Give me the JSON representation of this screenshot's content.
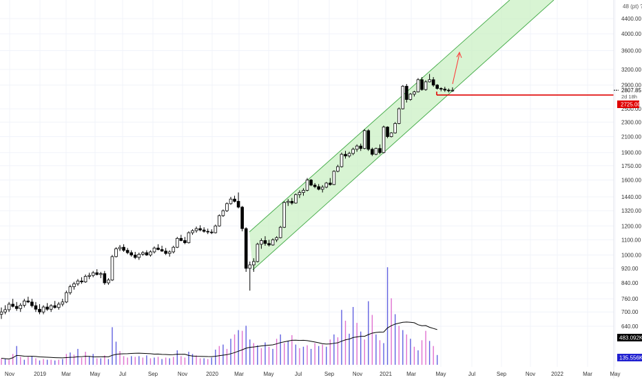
{
  "chart_data": {
    "type": "candlestick",
    "axis_corner_label": "48 (pt) ?",
    "y_ticks": [
      4400,
      4000,
      3600,
      3200,
      2900,
      2500,
      2300,
      2100,
      1900,
      1750,
      1600,
      1440,
      1320,
      1200,
      1100,
      1000,
      920,
      840,
      760,
      700,
      640
    ],
    "y_tick_labels": [
      "4400.00",
      "4000.00",
      "3600.00",
      "3200.00",
      "2900.00",
      "2500.00",
      "2300.00",
      "2100.00",
      "1900.00",
      "1750.00",
      "1600.00",
      "1440.00",
      "1320.00",
      "1200.00",
      "1100.00",
      "1000.00",
      "920.00",
      "840.00",
      "760.00",
      "700.00",
      "640.00"
    ],
    "x_labels": [
      "Nov",
      "2019",
      "Mar",
      "May",
      "Jul",
      "Sep",
      "Nov",
      "2020",
      "Mar",
      "May",
      "Jul",
      "Sep",
      "Nov",
      "2021",
      "Mar",
      "May",
      "Jul",
      "Sep",
      "Nov",
      "2022",
      "Mar",
      "May"
    ],
    "price_label": "2807.85",
    "countdown_label": "2d 18h",
    "level_label": "2725.00",
    "level_value": 2725,
    "vol_ma_label": "483.092K",
    "vol_label": "135.556K",
    "colors": {
      "up": "#000000",
      "down": "#000000",
      "channel_fill": "#c8f0c0",
      "channel_line": "#4caf50",
      "level": "#e00000",
      "arrow": "#ff3030",
      "vol_blue": "#6060e0",
      "vol_pink": "#e070d0",
      "vol_ma": "#000000",
      "label_red": "#e00000",
      "label_black": "#000000",
      "label_blue": "#2020d0"
    },
    "candles": [
      {
        "o": 690,
        "h": 720,
        "l": 670,
        "c": 700
      },
      {
        "o": 700,
        "h": 730,
        "l": 690,
        "c": 710
      },
      {
        "o": 710,
        "h": 745,
        "l": 700,
        "c": 735
      },
      {
        "o": 735,
        "h": 760,
        "l": 720,
        "c": 725
      },
      {
        "o": 725,
        "h": 745,
        "l": 705,
        "c": 715
      },
      {
        "o": 715,
        "h": 740,
        "l": 700,
        "c": 730
      },
      {
        "o": 730,
        "h": 760,
        "l": 720,
        "c": 750
      },
      {
        "o": 750,
        "h": 770,
        "l": 740,
        "c": 745
      },
      {
        "o": 745,
        "h": 760,
        "l": 720,
        "c": 728
      },
      {
        "o": 728,
        "h": 745,
        "l": 700,
        "c": 712
      },
      {
        "o": 712,
        "h": 735,
        "l": 690,
        "c": 700
      },
      {
        "o": 700,
        "h": 730,
        "l": 690,
        "c": 722
      },
      {
        "o": 722,
        "h": 740,
        "l": 705,
        "c": 712
      },
      {
        "o": 712,
        "h": 735,
        "l": 700,
        "c": 728
      },
      {
        "o": 728,
        "h": 750,
        "l": 715,
        "c": 720
      },
      {
        "o": 720,
        "h": 745,
        "l": 710,
        "c": 735
      },
      {
        "o": 735,
        "h": 760,
        "l": 725,
        "c": 745
      },
      {
        "o": 745,
        "h": 800,
        "l": 740,
        "c": 790
      },
      {
        "o": 790,
        "h": 830,
        "l": 780,
        "c": 820
      },
      {
        "o": 820,
        "h": 845,
        "l": 805,
        "c": 835
      },
      {
        "o": 835,
        "h": 860,
        "l": 825,
        "c": 850
      },
      {
        "o": 850,
        "h": 870,
        "l": 835,
        "c": 845
      },
      {
        "o": 845,
        "h": 885,
        "l": 840,
        "c": 875
      },
      {
        "o": 875,
        "h": 895,
        "l": 860,
        "c": 880
      },
      {
        "o": 880,
        "h": 905,
        "l": 870,
        "c": 895
      },
      {
        "o": 895,
        "h": 915,
        "l": 880,
        "c": 885
      },
      {
        "o": 885,
        "h": 900,
        "l": 865,
        "c": 890
      },
      {
        "o": 890,
        "h": 905,
        "l": 830,
        "c": 840
      },
      {
        "o": 840,
        "h": 865,
        "l": 830,
        "c": 855
      },
      {
        "o": 855,
        "h": 1000,
        "l": 850,
        "c": 990
      },
      {
        "o": 990,
        "h": 1050,
        "l": 985,
        "c": 1040
      },
      {
        "o": 1040,
        "h": 1065,
        "l": 1025,
        "c": 1050
      },
      {
        "o": 1050,
        "h": 1070,
        "l": 1020,
        "c": 1030
      },
      {
        "o": 1030,
        "h": 1045,
        "l": 1005,
        "c": 1015
      },
      {
        "o": 1015,
        "h": 1030,
        "l": 990,
        "c": 1000
      },
      {
        "o": 1000,
        "h": 1020,
        "l": 975,
        "c": 985
      },
      {
        "o": 985,
        "h": 1015,
        "l": 970,
        "c": 1005
      },
      {
        "o": 1005,
        "h": 1025,
        "l": 995,
        "c": 1015
      },
      {
        "o": 1015,
        "h": 1030,
        "l": 995,
        "c": 1000
      },
      {
        "o": 1000,
        "h": 1030,
        "l": 990,
        "c": 1020
      },
      {
        "o": 1020,
        "h": 1055,
        "l": 1010,
        "c": 1045
      },
      {
        "o": 1045,
        "h": 1070,
        "l": 1030,
        "c": 1035
      },
      {
        "o": 1035,
        "h": 1060,
        "l": 1020,
        "c": 1025
      },
      {
        "o": 1025,
        "h": 1045,
        "l": 1000,
        "c": 1010
      },
      {
        "o": 1010,
        "h": 1030,
        "l": 990,
        "c": 1020
      },
      {
        "o": 1020,
        "h": 1060,
        "l": 1010,
        "c": 1050
      },
      {
        "o": 1050,
        "h": 1120,
        "l": 1045,
        "c": 1110
      },
      {
        "o": 1110,
        "h": 1135,
        "l": 1090,
        "c": 1095
      },
      {
        "o": 1095,
        "h": 1120,
        "l": 1070,
        "c": 1080
      },
      {
        "o": 1080,
        "h": 1160,
        "l": 1075,
        "c": 1150
      },
      {
        "o": 1150,
        "h": 1175,
        "l": 1135,
        "c": 1165
      },
      {
        "o": 1165,
        "h": 1195,
        "l": 1150,
        "c": 1180
      },
      {
        "o": 1180,
        "h": 1205,
        "l": 1160,
        "c": 1170
      },
      {
        "o": 1170,
        "h": 1190,
        "l": 1150,
        "c": 1160
      },
      {
        "o": 1160,
        "h": 1180,
        "l": 1140,
        "c": 1155
      },
      {
        "o": 1155,
        "h": 1175,
        "l": 1140,
        "c": 1150
      },
      {
        "o": 1150,
        "h": 1210,
        "l": 1145,
        "c": 1200
      },
      {
        "o": 1200,
        "h": 1290,
        "l": 1195,
        "c": 1280
      },
      {
        "o": 1280,
        "h": 1330,
        "l": 1270,
        "c": 1320
      },
      {
        "o": 1320,
        "h": 1390,
        "l": 1310,
        "c": 1380
      },
      {
        "o": 1380,
        "h": 1440,
        "l": 1370,
        "c": 1420
      },
      {
        "o": 1420,
        "h": 1450,
        "l": 1390,
        "c": 1400
      },
      {
        "o": 1400,
        "h": 1480,
        "l": 1340,
        "c": 1350
      },
      {
        "o": 1350,
        "h": 1360,
        "l": 1160,
        "c": 1180
      },
      {
        "o": 1180,
        "h": 1190,
        "l": 900,
        "c": 920
      },
      {
        "o": 920,
        "h": 960,
        "l": 800,
        "c": 940
      },
      {
        "o": 940,
        "h": 980,
        "l": 900,
        "c": 960
      },
      {
        "o": 960,
        "h": 1080,
        "l": 955,
        "c": 1070
      },
      {
        "o": 1070,
        "h": 1110,
        "l": 1040,
        "c": 1095
      },
      {
        "o": 1095,
        "h": 1125,
        "l": 1060,
        "c": 1075
      },
      {
        "o": 1075,
        "h": 1100,
        "l": 1055,
        "c": 1065
      },
      {
        "o": 1065,
        "h": 1110,
        "l": 1060,
        "c": 1100
      },
      {
        "o": 1100,
        "h": 1125,
        "l": 1085,
        "c": 1115
      },
      {
        "o": 1115,
        "h": 1200,
        "l": 1110,
        "c": 1190
      },
      {
        "o": 1190,
        "h": 1400,
        "l": 1185,
        "c": 1390
      },
      {
        "o": 1390,
        "h": 1420,
        "l": 1360,
        "c": 1400
      },
      {
        "o": 1400,
        "h": 1430,
        "l": 1370,
        "c": 1385
      },
      {
        "o": 1385,
        "h": 1470,
        "l": 1380,
        "c": 1460
      },
      {
        "o": 1460,
        "h": 1500,
        "l": 1430,
        "c": 1480
      },
      {
        "o": 1480,
        "h": 1520,
        "l": 1450,
        "c": 1500
      },
      {
        "o": 1500,
        "h": 1620,
        "l": 1490,
        "c": 1600
      },
      {
        "o": 1600,
        "h": 1610,
        "l": 1540,
        "c": 1550
      },
      {
        "o": 1550,
        "h": 1570,
        "l": 1520,
        "c": 1535
      },
      {
        "o": 1535,
        "h": 1560,
        "l": 1500,
        "c": 1510
      },
      {
        "o": 1510,
        "h": 1550,
        "l": 1480,
        "c": 1530
      },
      {
        "o": 1530,
        "h": 1580,
        "l": 1520,
        "c": 1570
      },
      {
        "o": 1570,
        "h": 1620,
        "l": 1545,
        "c": 1555
      },
      {
        "o": 1555,
        "h": 1700,
        "l": 1550,
        "c": 1690
      },
      {
        "o": 1690,
        "h": 1760,
        "l": 1680,
        "c": 1740
      },
      {
        "o": 1740,
        "h": 1900,
        "l": 1730,
        "c": 1880
      },
      {
        "o": 1880,
        "h": 1920,
        "l": 1830,
        "c": 1860
      },
      {
        "o": 1860,
        "h": 1910,
        "l": 1840,
        "c": 1890
      },
      {
        "o": 1890,
        "h": 1960,
        "l": 1870,
        "c": 1940
      },
      {
        "o": 1940,
        "h": 2000,
        "l": 1910,
        "c": 1980
      },
      {
        "o": 1980,
        "h": 2010,
        "l": 1920,
        "c": 1950
      },
      {
        "o": 1950,
        "h": 2200,
        "l": 1940,
        "c": 2180
      },
      {
        "o": 2180,
        "h": 2200,
        "l": 1920,
        "c": 1940
      },
      {
        "o": 1940,
        "h": 1960,
        "l": 1860,
        "c": 1880
      },
      {
        "o": 1880,
        "h": 1960,
        "l": 1870,
        "c": 1950
      },
      {
        "o": 1950,
        "h": 2000,
        "l": 1880,
        "c": 1900
      },
      {
        "o": 1900,
        "h": 2250,
        "l": 1890,
        "c": 2230
      },
      {
        "o": 2230,
        "h": 2240,
        "l": 2080,
        "c": 2100
      },
      {
        "o": 2100,
        "h": 2160,
        "l": 2090,
        "c": 2150
      },
      {
        "o": 2150,
        "h": 2300,
        "l": 2140,
        "c": 2280
      },
      {
        "o": 2280,
        "h": 2520,
        "l": 2270,
        "c": 2500
      },
      {
        "o": 2500,
        "h": 2900,
        "l": 2490,
        "c": 2880
      },
      {
        "o": 2880,
        "h": 2920,
        "l": 2600,
        "c": 2650
      },
      {
        "o": 2650,
        "h": 2760,
        "l": 2630,
        "c": 2740
      },
      {
        "o": 2740,
        "h": 2800,
        "l": 2700,
        "c": 2780
      },
      {
        "o": 2780,
        "h": 3030,
        "l": 2770,
        "c": 3000
      },
      {
        "o": 3000,
        "h": 3050,
        "l": 2800,
        "c": 2820
      },
      {
        "o": 2820,
        "h": 2990,
        "l": 2800,
        "c": 2960
      },
      {
        "o": 2960,
        "h": 3110,
        "l": 2950,
        "c": 3000
      },
      {
        "o": 3000,
        "h": 3050,
        "l": 2870,
        "c": 2900
      },
      {
        "o": 2900,
        "h": 2920,
        "l": 2820,
        "c": 2840
      },
      {
        "o": 2840,
        "h": 2860,
        "l": 2790,
        "c": 2830
      },
      {
        "o": 2830,
        "h": 2870,
        "l": 2780,
        "c": 2810
      },
      {
        "o": 2810,
        "h": 2840,
        "l": 2770,
        "c": 2800
      },
      {
        "o": 2800,
        "h": 2860,
        "l": 2780,
        "c": 2807.85
      }
    ],
    "volumes": [
      {
        "v": 90,
        "c": "pink"
      },
      {
        "v": 80,
        "c": "blue"
      },
      {
        "v": 70,
        "c": "pink"
      },
      {
        "v": 150,
        "c": "pink"
      },
      {
        "v": 260,
        "c": "blue"
      },
      {
        "v": 110,
        "c": "pink"
      },
      {
        "v": 70,
        "c": "blue"
      },
      {
        "v": 110,
        "c": "pink"
      },
      {
        "v": 120,
        "c": "blue"
      },
      {
        "v": 90,
        "c": "pink"
      },
      {
        "v": 60,
        "c": "blue"
      },
      {
        "v": 80,
        "c": "pink"
      },
      {
        "v": 70,
        "c": "blue"
      },
      {
        "v": 70,
        "c": "pink"
      },
      {
        "v": 60,
        "c": "blue"
      },
      {
        "v": 70,
        "c": "pink"
      },
      {
        "v": 80,
        "c": "blue"
      },
      {
        "v": 150,
        "c": "pink"
      },
      {
        "v": 170,
        "c": "blue"
      },
      {
        "v": 140,
        "c": "pink"
      },
      {
        "v": 220,
        "c": "blue"
      },
      {
        "v": 100,
        "c": "pink"
      },
      {
        "v": 180,
        "c": "pink"
      },
      {
        "v": 120,
        "c": "blue"
      },
      {
        "v": 150,
        "c": "blue"
      },
      {
        "v": 90,
        "c": "pink"
      },
      {
        "v": 90,
        "c": "blue"
      },
      {
        "v": 130,
        "c": "pink"
      },
      {
        "v": 80,
        "c": "blue"
      },
      {
        "v": 520,
        "c": "blue"
      },
      {
        "v": 320,
        "c": "blue"
      },
      {
        "v": 190,
        "c": "pink"
      },
      {
        "v": 120,
        "c": "pink"
      },
      {
        "v": 100,
        "c": "pink"
      },
      {
        "v": 120,
        "c": "blue"
      },
      {
        "v": 110,
        "c": "pink"
      },
      {
        "v": 120,
        "c": "blue"
      },
      {
        "v": 100,
        "c": "pink"
      },
      {
        "v": 130,
        "c": "blue"
      },
      {
        "v": 90,
        "c": "pink"
      },
      {
        "v": 100,
        "c": "blue"
      },
      {
        "v": 110,
        "c": "pink"
      },
      {
        "v": 80,
        "c": "blue"
      },
      {
        "v": 100,
        "c": "pink"
      },
      {
        "v": 90,
        "c": "blue"
      },
      {
        "v": 110,
        "c": "pink"
      },
      {
        "v": 200,
        "c": "blue"
      },
      {
        "v": 120,
        "c": "pink"
      },
      {
        "v": 100,
        "c": "pink"
      },
      {
        "v": 180,
        "c": "blue"
      },
      {
        "v": 150,
        "c": "blue"
      },
      {
        "v": 130,
        "c": "pink"
      },
      {
        "v": 90,
        "c": "pink"
      },
      {
        "v": 90,
        "c": "blue"
      },
      {
        "v": 80,
        "c": "pink"
      },
      {
        "v": 100,
        "c": "blue"
      },
      {
        "v": 210,
        "c": "blue"
      },
      {
        "v": 260,
        "c": "pink"
      },
      {
        "v": 280,
        "c": "blue"
      },
      {
        "v": 220,
        "c": "pink"
      },
      {
        "v": 360,
        "c": "blue"
      },
      {
        "v": 420,
        "c": "pink"
      },
      {
        "v": 480,
        "c": "blue"
      },
      {
        "v": 470,
        "c": "pink"
      },
      {
        "v": 540,
        "c": "blue"
      },
      {
        "v": 350,
        "c": "blue"
      },
      {
        "v": 300,
        "c": "pink"
      },
      {
        "v": 270,
        "c": "blue"
      },
      {
        "v": 230,
        "c": "pink"
      },
      {
        "v": 310,
        "c": "blue"
      },
      {
        "v": 250,
        "c": "pink"
      },
      {
        "v": 220,
        "c": "blue"
      },
      {
        "v": 360,
        "c": "pink"
      },
      {
        "v": 420,
        "c": "blue"
      },
      {
        "v": 300,
        "c": "pink"
      },
      {
        "v": 330,
        "c": "blue"
      },
      {
        "v": 410,
        "c": "pink"
      },
      {
        "v": 280,
        "c": "blue"
      },
      {
        "v": 230,
        "c": "pink"
      },
      {
        "v": 250,
        "c": "blue"
      },
      {
        "v": 270,
        "c": "pink"
      },
      {
        "v": 220,
        "c": "blue"
      },
      {
        "v": 300,
        "c": "pink"
      },
      {
        "v": 260,
        "c": "blue"
      },
      {
        "v": 280,
        "c": "pink"
      },
      {
        "v": 250,
        "c": "blue"
      },
      {
        "v": 350,
        "c": "pink"
      },
      {
        "v": 420,
        "c": "blue"
      },
      {
        "v": 380,
        "c": "pink"
      },
      {
        "v": 760,
        "c": "blue"
      },
      {
        "v": 610,
        "c": "pink"
      },
      {
        "v": 430,
        "c": "blue"
      },
      {
        "v": 800,
        "c": "blue"
      },
      {
        "v": 580,
        "c": "pink"
      },
      {
        "v": 460,
        "c": "blue"
      },
      {
        "v": 350,
        "c": "pink"
      },
      {
        "v": 880,
        "c": "blue"
      },
      {
        "v": 690,
        "c": "pink"
      },
      {
        "v": 420,
        "c": "blue"
      },
      {
        "v": 340,
        "c": "pink"
      },
      {
        "v": 300,
        "c": "blue"
      },
      {
        "v": 1350,
        "c": "blue"
      },
      {
        "v": 920,
        "c": "pink"
      },
      {
        "v": 700,
        "c": "blue"
      },
      {
        "v": 540,
        "c": "pink"
      },
      {
        "v": 480,
        "c": "blue"
      },
      {
        "v": 420,
        "c": "pink"
      },
      {
        "v": 360,
        "c": "blue"
      },
      {
        "v": 250,
        "c": "pink"
      },
      {
        "v": 200,
        "c": "blue"
      },
      {
        "v": 340,
        "c": "pink"
      },
      {
        "v": 470,
        "c": "pink"
      },
      {
        "v": 330,
        "c": "blue"
      },
      {
        "v": 260,
        "c": "pink"
      },
      {
        "v": 135.556,
        "c": "blue"
      }
    ]
  }
}
